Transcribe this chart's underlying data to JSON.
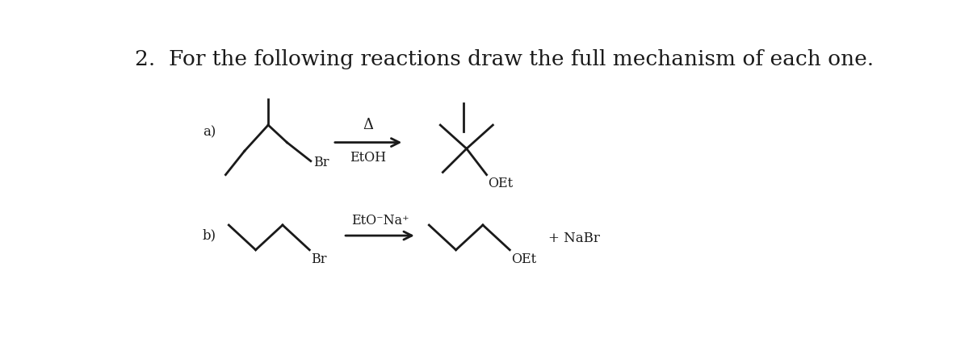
{
  "title": "2.  For the following reactions draw the full mechanism of each one.",
  "title_fontsize": 19,
  "bg_color": "#ffffff",
  "text_color": "#1a1a1a",
  "lw": 2.0,
  "label_a": "a)",
  "label_b": "b)",
  "br_label": "Br",
  "oet_label_a": "OEt",
  "oet_label_b": "OEt",
  "etoh_label": "EtOH",
  "delta_label": "Δ",
  "eto_na_label": "EtO⁻Na⁺",
  "nabr_label": "+ NaBr"
}
